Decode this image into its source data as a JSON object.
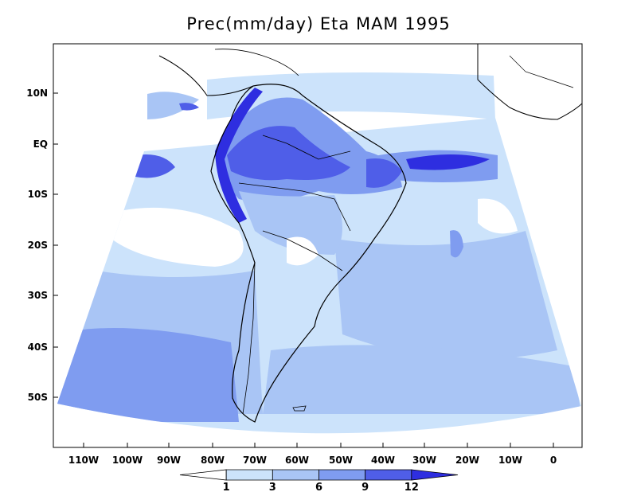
{
  "title": "Prec(mm/day) Eta MAM 1995",
  "map": {
    "lat_labels": [
      "10N",
      "EQ",
      "10S",
      "20S",
      "30S",
      "40S",
      "50S"
    ],
    "lon_labels": [
      "110W",
      "100W",
      "90W",
      "80W",
      "70W",
      "60W",
      "50W",
      "40W",
      "30W",
      "20W",
      "10W",
      "0"
    ]
  },
  "colorbar": {
    "levels": [
      "1",
      "3",
      "6",
      "9",
      "12"
    ],
    "colors": [
      "#ffffff",
      "#cce3fb",
      "#a9c5f5",
      "#7f9cf0",
      "#4f5ee8",
      "#2e2ee0"
    ]
  },
  "palette": {
    "ocean_outside": "#ffffff",
    "light": "#cce3fb",
    "mid": "#a9c5f5",
    "blue": "#7f9cf0",
    "deep": "#4f5ee8",
    "deepest": "#2e2ee0"
  }
}
